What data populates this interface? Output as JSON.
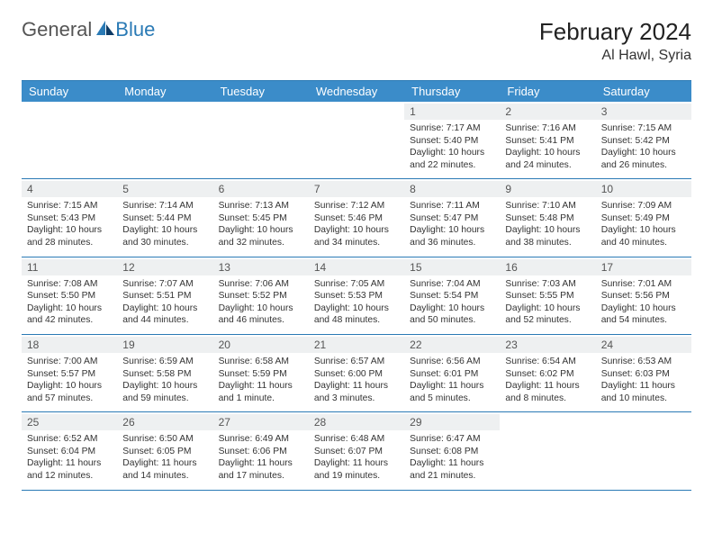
{
  "logo": {
    "word1": "General",
    "word2": "Blue"
  },
  "header": {
    "title": "February 2024",
    "location": "Al Hawl, Syria"
  },
  "colors": {
    "headerBar": "#3b8cc9",
    "rule": "#2a7ab5",
    "dayRow": "#eef0f1"
  },
  "dayNames": [
    "Sunday",
    "Monday",
    "Tuesday",
    "Wednesday",
    "Thursday",
    "Friday",
    "Saturday"
  ],
  "weeks": [
    [
      null,
      null,
      null,
      null,
      {
        "n": "1",
        "sr": "7:17 AM",
        "ss": "5:40 PM",
        "dl": "10 hours and 22 minutes."
      },
      {
        "n": "2",
        "sr": "7:16 AM",
        "ss": "5:41 PM",
        "dl": "10 hours and 24 minutes."
      },
      {
        "n": "3",
        "sr": "7:15 AM",
        "ss": "5:42 PM",
        "dl": "10 hours and 26 minutes."
      }
    ],
    [
      {
        "n": "4",
        "sr": "7:15 AM",
        "ss": "5:43 PM",
        "dl": "10 hours and 28 minutes."
      },
      {
        "n": "5",
        "sr": "7:14 AM",
        "ss": "5:44 PM",
        "dl": "10 hours and 30 minutes."
      },
      {
        "n": "6",
        "sr": "7:13 AM",
        "ss": "5:45 PM",
        "dl": "10 hours and 32 minutes."
      },
      {
        "n": "7",
        "sr": "7:12 AM",
        "ss": "5:46 PM",
        "dl": "10 hours and 34 minutes."
      },
      {
        "n": "8",
        "sr": "7:11 AM",
        "ss": "5:47 PM",
        "dl": "10 hours and 36 minutes."
      },
      {
        "n": "9",
        "sr": "7:10 AM",
        "ss": "5:48 PM",
        "dl": "10 hours and 38 minutes."
      },
      {
        "n": "10",
        "sr": "7:09 AM",
        "ss": "5:49 PM",
        "dl": "10 hours and 40 minutes."
      }
    ],
    [
      {
        "n": "11",
        "sr": "7:08 AM",
        "ss": "5:50 PM",
        "dl": "10 hours and 42 minutes."
      },
      {
        "n": "12",
        "sr": "7:07 AM",
        "ss": "5:51 PM",
        "dl": "10 hours and 44 minutes."
      },
      {
        "n": "13",
        "sr": "7:06 AM",
        "ss": "5:52 PM",
        "dl": "10 hours and 46 minutes."
      },
      {
        "n": "14",
        "sr": "7:05 AM",
        "ss": "5:53 PM",
        "dl": "10 hours and 48 minutes."
      },
      {
        "n": "15",
        "sr": "7:04 AM",
        "ss": "5:54 PM",
        "dl": "10 hours and 50 minutes."
      },
      {
        "n": "16",
        "sr": "7:03 AM",
        "ss": "5:55 PM",
        "dl": "10 hours and 52 minutes."
      },
      {
        "n": "17",
        "sr": "7:01 AM",
        "ss": "5:56 PM",
        "dl": "10 hours and 54 minutes."
      }
    ],
    [
      {
        "n": "18",
        "sr": "7:00 AM",
        "ss": "5:57 PM",
        "dl": "10 hours and 57 minutes."
      },
      {
        "n": "19",
        "sr": "6:59 AM",
        "ss": "5:58 PM",
        "dl": "10 hours and 59 minutes."
      },
      {
        "n": "20",
        "sr": "6:58 AM",
        "ss": "5:59 PM",
        "dl": "11 hours and 1 minute."
      },
      {
        "n": "21",
        "sr": "6:57 AM",
        "ss": "6:00 PM",
        "dl": "11 hours and 3 minutes."
      },
      {
        "n": "22",
        "sr": "6:56 AM",
        "ss": "6:01 PM",
        "dl": "11 hours and 5 minutes."
      },
      {
        "n": "23",
        "sr": "6:54 AM",
        "ss": "6:02 PM",
        "dl": "11 hours and 8 minutes."
      },
      {
        "n": "24",
        "sr": "6:53 AM",
        "ss": "6:03 PM",
        "dl": "11 hours and 10 minutes."
      }
    ],
    [
      {
        "n": "25",
        "sr": "6:52 AM",
        "ss": "6:04 PM",
        "dl": "11 hours and 12 minutes."
      },
      {
        "n": "26",
        "sr": "6:50 AM",
        "ss": "6:05 PM",
        "dl": "11 hours and 14 minutes."
      },
      {
        "n": "27",
        "sr": "6:49 AM",
        "ss": "6:06 PM",
        "dl": "11 hours and 17 minutes."
      },
      {
        "n": "28",
        "sr": "6:48 AM",
        "ss": "6:07 PM",
        "dl": "11 hours and 19 minutes."
      },
      {
        "n": "29",
        "sr": "6:47 AM",
        "ss": "6:08 PM",
        "dl": "11 hours and 21 minutes."
      },
      null,
      null
    ]
  ],
  "labels": {
    "sunrise": "Sunrise:",
    "sunset": "Sunset:",
    "daylight": "Daylight:"
  }
}
